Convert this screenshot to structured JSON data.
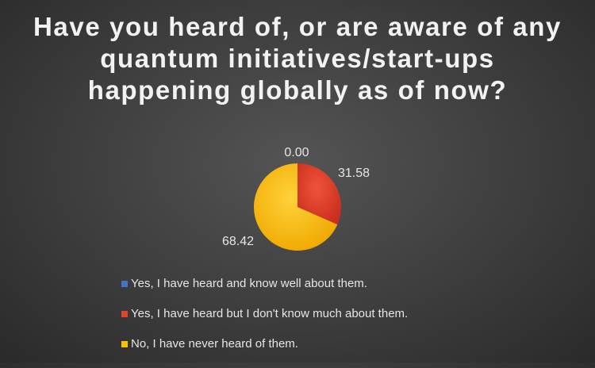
{
  "chart_data": {
    "type": "pie",
    "title": "Have you heard of, or are aware of any quantum initiatives/start-ups happening globally as of now?",
    "categories": [
      "Yes, I have heard and know well about them.",
      "Yes, I have heard but I don't know much about them.",
      "No, I have never heard of them."
    ],
    "values": [
      0.0,
      31.58,
      68.42
    ],
    "data_labels": [
      "0.00",
      "31.58",
      "68.42"
    ],
    "colors": [
      "#4472C4",
      "#E8412B",
      "#FFC000"
    ],
    "legend_position": "bottom"
  }
}
